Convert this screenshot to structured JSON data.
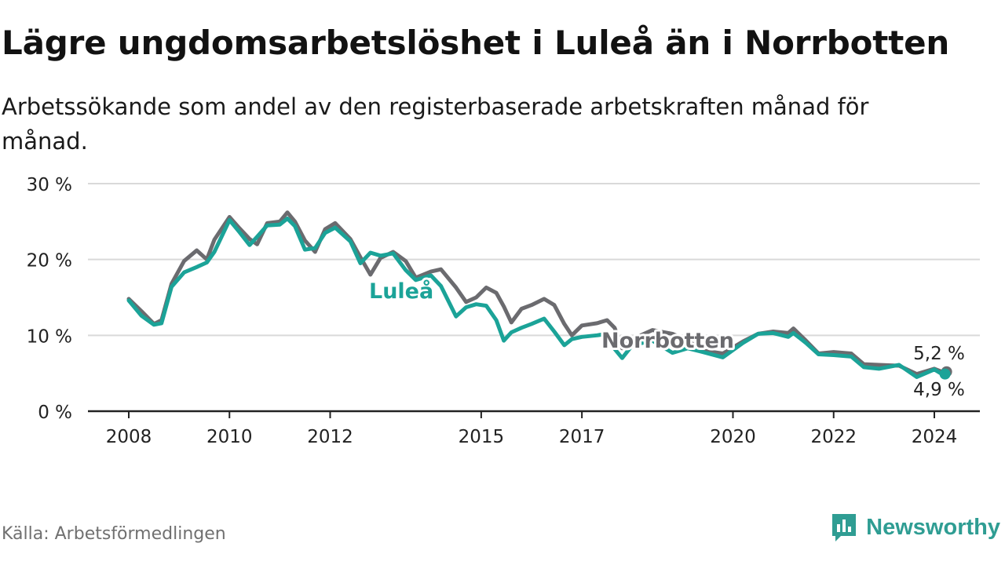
{
  "title": "Lägre ungdomsarbetslöshet i Luleå än i Norrbotten",
  "subtitle": "Arbetssökande som andel av den registerbaserade arbetskraften månad för månad.",
  "source": "Källa: Arbetsförmedlingen",
  "brand": {
    "name": "Newsworthy",
    "icon": "newsworthy-logo-icon"
  },
  "colors": {
    "lulea": "#1ba398",
    "norrbotten": "#6b6b6f",
    "grid": "#d9d9d9",
    "axis": "#222222"
  },
  "chart_data": {
    "type": "line",
    "title": "Lägre ungdomsarbetslöshet i Luleå än i Norrbotten",
    "xlabel": "",
    "ylabel": "",
    "ylim": [
      0,
      30
    ],
    "yticks": [
      0,
      10,
      20,
      30
    ],
    "ytick_labels": [
      "0 %",
      "10 %",
      "20 %",
      "30 %"
    ],
    "xlim": [
      2008,
      2024.6
    ],
    "xticks": [
      2008,
      2010,
      2012,
      2015,
      2017,
      2020,
      2022,
      2024
    ],
    "xtick_labels": [
      "2008",
      "2010",
      "2012",
      "2015",
      "2017",
      "2020",
      "2022",
      "2024"
    ],
    "series": [
      {
        "name": "Norrbotten",
        "end_label": "5,2 %",
        "points": [
          [
            2008.0,
            14.8
          ],
          [
            2008.25,
            13.2
          ],
          [
            2008.5,
            11.5
          ],
          [
            2008.65,
            12.0
          ],
          [
            2008.85,
            16.8
          ],
          [
            2009.1,
            19.8
          ],
          [
            2009.35,
            21.2
          ],
          [
            2009.55,
            20.0
          ],
          [
            2009.7,
            22.6
          ],
          [
            2010.0,
            25.6
          ],
          [
            2010.2,
            24.1
          ],
          [
            2010.4,
            22.7
          ],
          [
            2010.55,
            22.0
          ],
          [
            2010.75,
            24.8
          ],
          [
            2011.0,
            25.0
          ],
          [
            2011.15,
            26.2
          ],
          [
            2011.3,
            25.0
          ],
          [
            2011.5,
            22.5
          ],
          [
            2011.7,
            21.0
          ],
          [
            2011.9,
            24.0
          ],
          [
            2012.1,
            24.8
          ],
          [
            2012.4,
            22.7
          ],
          [
            2012.6,
            20.3
          ],
          [
            2012.8,
            18.0
          ],
          [
            2013.0,
            20.2
          ],
          [
            2013.25,
            21.0
          ],
          [
            2013.5,
            19.8
          ],
          [
            2013.7,
            17.6
          ],
          [
            2014.0,
            18.4
          ],
          [
            2014.2,
            18.7
          ],
          [
            2014.5,
            16.3
          ],
          [
            2014.7,
            14.4
          ],
          [
            2014.9,
            15.0
          ],
          [
            2015.1,
            16.3
          ],
          [
            2015.3,
            15.6
          ],
          [
            2015.45,
            13.8
          ],
          [
            2015.6,
            11.7
          ],
          [
            2015.8,
            13.5
          ],
          [
            2016.0,
            14.0
          ],
          [
            2016.25,
            14.8
          ],
          [
            2016.45,
            14.0
          ],
          [
            2016.65,
            11.5
          ],
          [
            2016.8,
            10.0
          ],
          [
            2017.0,
            11.3
          ],
          [
            2017.3,
            11.6
          ],
          [
            2017.5,
            12.0
          ],
          [
            2017.65,
            11.0
          ],
          [
            2017.8,
            8.3
          ],
          [
            2018.0,
            9.5
          ],
          [
            2018.4,
            10.7
          ],
          [
            2018.8,
            10.2
          ],
          [
            2019.1,
            9.3
          ],
          [
            2019.4,
            8.0
          ],
          [
            2019.8,
            7.6
          ],
          [
            2020.2,
            9.2
          ],
          [
            2020.5,
            10.2
          ],
          [
            2020.8,
            10.5
          ],
          [
            2021.1,
            10.3
          ],
          [
            2021.2,
            10.9
          ],
          [
            2021.45,
            9.3
          ],
          [
            2021.7,
            7.6
          ],
          [
            2022.0,
            7.8
          ],
          [
            2022.35,
            7.6
          ],
          [
            2022.6,
            6.2
          ],
          [
            2022.9,
            6.1
          ],
          [
            2023.3,
            6.0
          ],
          [
            2023.65,
            4.9
          ],
          [
            2024.0,
            5.6
          ],
          [
            2024.3,
            5.2
          ],
          [
            2024.15,
            5.2
          ]
        ]
      },
      {
        "name": "Luleå",
        "end_label": "4,9 %",
        "points": [
          [
            2008.0,
            14.6
          ],
          [
            2008.25,
            12.6
          ],
          [
            2008.5,
            11.4
          ],
          [
            2008.65,
            11.6
          ],
          [
            2008.85,
            16.4
          ],
          [
            2009.1,
            18.3
          ],
          [
            2009.35,
            19.0
          ],
          [
            2009.55,
            19.6
          ],
          [
            2009.7,
            21.0
          ],
          [
            2010.0,
            25.2
          ],
          [
            2010.2,
            23.6
          ],
          [
            2010.4,
            21.9
          ],
          [
            2010.55,
            23.0
          ],
          [
            2010.75,
            24.5
          ],
          [
            2011.0,
            24.6
          ],
          [
            2011.15,
            25.4
          ],
          [
            2011.3,
            24.4
          ],
          [
            2011.5,
            21.3
          ],
          [
            2011.7,
            21.5
          ],
          [
            2011.9,
            23.5
          ],
          [
            2012.1,
            24.2
          ],
          [
            2012.4,
            22.4
          ],
          [
            2012.6,
            19.5
          ],
          [
            2012.8,
            20.9
          ],
          [
            2013.0,
            20.5
          ],
          [
            2013.25,
            20.8
          ],
          [
            2013.5,
            18.6
          ],
          [
            2013.7,
            17.3
          ],
          [
            2014.0,
            17.9
          ],
          [
            2014.2,
            16.5
          ],
          [
            2014.5,
            12.5
          ],
          [
            2014.7,
            13.7
          ],
          [
            2014.9,
            14.1
          ],
          [
            2015.1,
            13.9
          ],
          [
            2015.3,
            12.0
          ],
          [
            2015.45,
            9.3
          ],
          [
            2015.6,
            10.4
          ],
          [
            2015.8,
            11.0
          ],
          [
            2016.0,
            11.5
          ],
          [
            2016.25,
            12.2
          ],
          [
            2016.45,
            10.5
          ],
          [
            2016.65,
            8.7
          ],
          [
            2016.8,
            9.5
          ],
          [
            2017.0,
            9.8
          ],
          [
            2017.3,
            10.0
          ],
          [
            2017.5,
            10.2
          ],
          [
            2017.65,
            8.2
          ],
          [
            2017.8,
            7.0
          ],
          [
            2018.0,
            8.7
          ],
          [
            2018.4,
            9.3
          ],
          [
            2018.8,
            7.7
          ],
          [
            2019.1,
            8.3
          ],
          [
            2019.4,
            7.8
          ],
          [
            2019.8,
            7.1
          ],
          [
            2020.2,
            9.0
          ],
          [
            2020.5,
            10.2
          ],
          [
            2020.8,
            10.3
          ],
          [
            2021.1,
            9.8
          ],
          [
            2021.2,
            10.3
          ],
          [
            2021.45,
            9.0
          ],
          [
            2021.7,
            7.5
          ],
          [
            2022.0,
            7.4
          ],
          [
            2022.35,
            7.2
          ],
          [
            2022.6,
            5.8
          ],
          [
            2022.9,
            5.6
          ],
          [
            2023.3,
            6.1
          ],
          [
            2023.65,
            4.5
          ],
          [
            2024.0,
            5.5
          ],
          [
            2024.15,
            4.9
          ]
        ]
      }
    ]
  }
}
